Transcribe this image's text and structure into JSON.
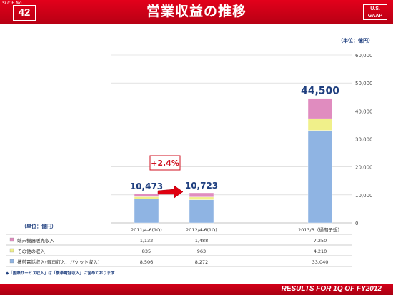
{
  "header": {
    "slide_label": "SLIDE No.",
    "slide_number": "42",
    "title": "営業収益の推移",
    "gaap_line1": "U.S.",
    "gaap_line2": "GAAP"
  },
  "footer": {
    "text": "RESULTS FOR 1Q OF FY2012"
  },
  "chart_data": {
    "type": "bar",
    "stacked": true,
    "unit_label": "（単位：億円）",
    "table_unit_label": "（単位：億円）",
    "categories": [
      "2011/4-6(1Q)",
      "2012/4-6(1Q)",
      "2013/3（通期予想）"
    ],
    "series": [
      {
        "name": "携帯電話収入(音声収入、パケット収入)",
        "values": [
          8506,
          8272,
          33040
        ],
        "color": "#8fb4e3"
      },
      {
        "name": "その他の収入",
        "values": [
          835,
          963,
          4210
        ],
        "color": "#f0f08a"
      },
      {
        "name": "端末機器販売収入",
        "values": [
          1132,
          1488,
          7250
        ],
        "color": "#e08cbf"
      }
    ],
    "totals": [
      "10,473",
      "10,723",
      "44,500"
    ],
    "ylim": [
      0,
      60000
    ],
    "yticks": [
      "0",
      "10,000",
      "20,000",
      "30,000",
      "40,000",
      "50,000",
      "60,000"
    ],
    "ytick_values": [
      0,
      10000,
      20000,
      30000,
      40000,
      50000,
      60000
    ],
    "growth_label": "+2.4%",
    "table_rows": [
      {
        "label": "端末機器販売収入",
        "color": "#e08cbf",
        "values": [
          "1,132",
          "1,488",
          "7,250"
        ]
      },
      {
        "label": "その他の収入",
        "color": "#f0f08a",
        "values": [
          "835",
          "963",
          "4,210"
        ]
      },
      {
        "label": "携帯電話収入(音声収入、パケット収入)",
        "color": "#8fb4e3",
        "values": [
          "8,506",
          "8,272",
          "33,040"
        ]
      }
    ],
    "footnote": "◆「国際サービス収入」は「携帯電話収入」に含めております"
  }
}
